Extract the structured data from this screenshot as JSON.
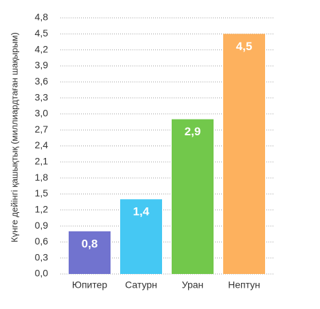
{
  "chart_data": {
    "type": "bar",
    "y_label": "Күнге дейінгі қашықтық (миллиардтаған шақырым)",
    "categories": [
      "Юпитер",
      "Сатурн",
      "Уран",
      "Нептун"
    ],
    "values": [
      0.8,
      1.4,
      2.9,
      4.5
    ],
    "value_labels": [
      "0,8",
      "1,4",
      "2,9",
      "4,5"
    ],
    "colors": [
      "#7173cf",
      "#45c8f3",
      "#72c84b",
      "#fdb15e"
    ],
    "ylim": [
      0,
      4.8
    ],
    "yticks": [
      {
        "value": 0,
        "label": "0,0"
      },
      {
        "value": 0.3,
        "label": "0,3"
      },
      {
        "value": 0.6,
        "label": "0,6"
      },
      {
        "value": 0.9,
        "label": "0,9"
      },
      {
        "value": 1.2,
        "label": "1,2"
      },
      {
        "value": 1.5,
        "label": "1,5"
      },
      {
        "value": 1.8,
        "label": "1,8"
      },
      {
        "value": 2.1,
        "label": "2,1"
      },
      {
        "value": 2.4,
        "label": "2,4"
      },
      {
        "value": 2.7,
        "label": "2,7"
      },
      {
        "value": 3.0,
        "label": "3,0"
      },
      {
        "value": 3.3,
        "label": "3,3"
      },
      {
        "value": 3.6,
        "label": "3,6"
      },
      {
        "value": 3.9,
        "label": "3,9"
      },
      {
        "value": 4.2,
        "label": "4,2"
      },
      {
        "value": 4.5,
        "label": "4,5"
      },
      {
        "value": 4.8,
        "label": "4,8"
      }
    ],
    "grid": true
  }
}
